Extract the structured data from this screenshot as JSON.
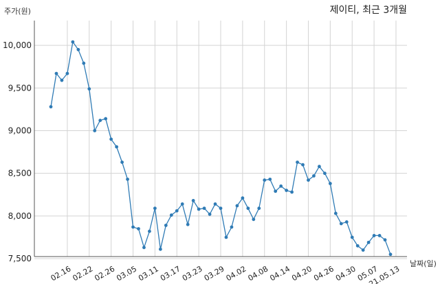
{
  "chart_data": {
    "type": "line",
    "title": "제이티, 최근 3개월",
    "ylabel": "주가(원)",
    "xlabel": "날짜(일)",
    "ylim": [
      7500,
      10250
    ],
    "y_ticks": [
      7500,
      8000,
      8500,
      9000,
      9500,
      10000
    ],
    "y_tick_labels": [
      "7,500",
      "8,000",
      "8,500",
      "9,000",
      "9,500",
      "10,000"
    ],
    "x_tick_labels": [
      "02.16",
      "02.22",
      "02.26",
      "03.05",
      "03.11",
      "03.17",
      "03.23",
      "03.29",
      "04.02",
      "04.08",
      "04.14",
      "04.20",
      "04.26",
      "04.30",
      "05.07",
      "21.05.13"
    ],
    "x_tick_positions": [
      3,
      7,
      11,
      15,
      19,
      23,
      27,
      31,
      35,
      39,
      43,
      47,
      51,
      55,
      59,
      63
    ],
    "grid": true,
    "line_color": "#2f7bb5",
    "series": [
      {
        "name": "",
        "values": [
          9280,
          9670,
          9590,
          9670,
          10040,
          9950,
          9790,
          9490,
          9000,
          9120,
          9140,
          8900,
          8810,
          8630,
          8430,
          7870,
          7850,
          7630,
          7820,
          8090,
          7610,
          7890,
          8010,
          8060,
          8140,
          7900,
          8180,
          8080,
          8090,
          8020,
          8140,
          8090,
          7750,
          7870,
          8120,
          8210,
          8090,
          7960,
          8090,
          8420,
          8430,
          8290,
          8350,
          8300,
          8280,
          8630,
          8600,
          8420,
          8470,
          8580,
          8500,
          8380,
          8030,
          7910,
          7930,
          7750,
          7650,
          7600,
          7690,
          7770,
          7770,
          7720,
          7550
        ]
      }
    ]
  }
}
